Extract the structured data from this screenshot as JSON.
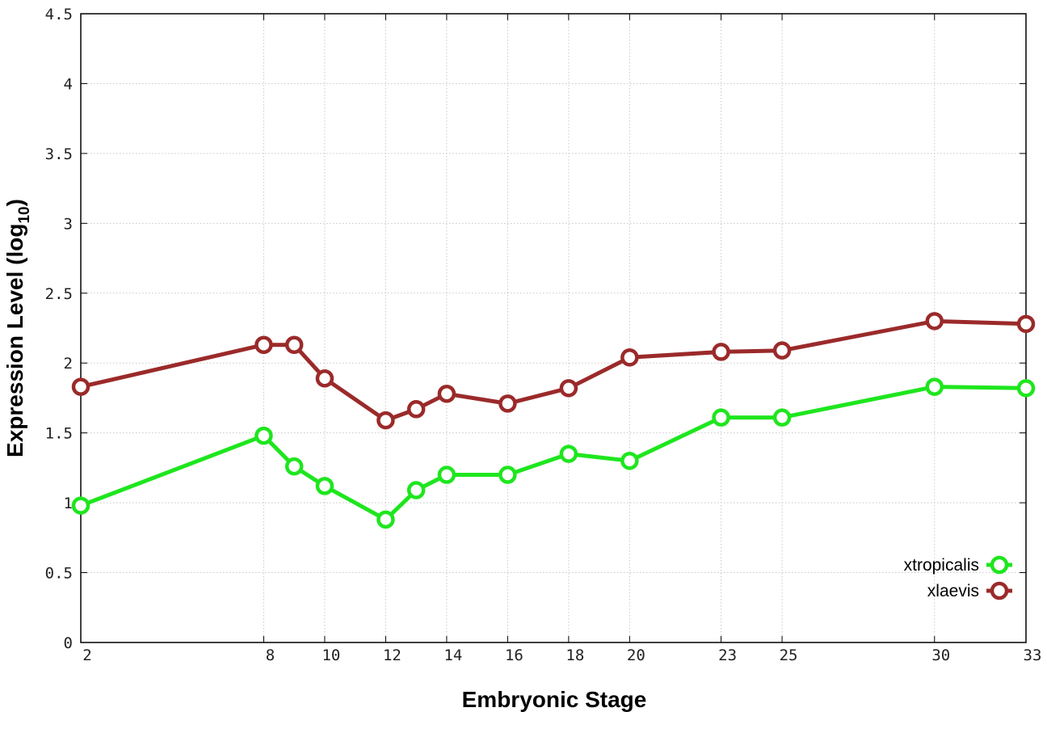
{
  "chart_data": {
    "type": "line",
    "xlabel": "Embryonic Stage",
    "ylabel_main": "Expression Level (log",
    "ylabel_sub": "10",
    "ylabel_close": ")",
    "xlim": [
      2,
      33
    ],
    "ylim": [
      0,
      4.5
    ],
    "x_ticks": [
      2,
      8,
      10,
      12,
      14,
      16,
      18,
      20,
      23,
      25,
      30,
      33
    ],
    "y_ticks": [
      0,
      0.5,
      1,
      1.5,
      2,
      2.5,
      3,
      3.5,
      4,
      4.5
    ],
    "y_tick_labels": [
      "0",
      "0.5",
      "1",
      "1.5",
      "2",
      "2.5",
      "3",
      "3.5",
      "4",
      "4.5"
    ],
    "grid": true,
    "legend_position": "bottom-right",
    "series": [
      {
        "name": "xtropicalis",
        "color": "#1ee61e",
        "x": [
          2,
          8,
          9,
          10,
          12,
          13,
          14,
          16,
          18,
          20,
          23,
          25,
          30,
          33
        ],
        "y": [
          0.98,
          1.48,
          1.26,
          1.12,
          0.88,
          1.09,
          1.2,
          1.2,
          1.35,
          1.3,
          1.61,
          1.61,
          1.83,
          1.82
        ]
      },
      {
        "name": "xlaevis",
        "color": "#9b2a2a",
        "x": [
          2,
          8,
          9,
          10,
          12,
          13,
          14,
          16,
          18,
          20,
          23,
          25,
          30,
          33
        ],
        "y": [
          1.83,
          2.13,
          2.13,
          1.89,
          1.59,
          1.67,
          1.78,
          1.71,
          1.82,
          2.04,
          2.08,
          2.09,
          2.3,
          2.28
        ]
      }
    ]
  }
}
